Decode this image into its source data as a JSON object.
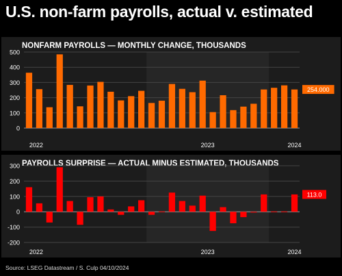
{
  "title": "U.S. non-farm payrolls, actual v. estimated",
  "source": "Source: LSEG Datastream / S. Culp 04/10/2024",
  "colors": {
    "background": "#000000",
    "panel": "#1c1c1c",
    "panel_shade": "#262626",
    "grid": "#444444",
    "top_bars": "#ff6a00",
    "bottom_bars": "#ff0000"
  },
  "chart_data": [
    {
      "type": "bar",
      "title": "NONFARM PAYROLLS — MONTHLY CHANGE, THOUSANDS",
      "xlabel": "",
      "ylabel": "",
      "ylim": [
        0,
        500
      ],
      "yticks": [
        0,
        100,
        200,
        300,
        400,
        500
      ],
      "year_labels": [
        "2022",
        "2023",
        "2024"
      ],
      "grid": true,
      "last_value_label": "254.000",
      "categories": [
        "2022-01",
        "2022-02",
        "2022-03",
        "2022-04",
        "2022-05",
        "2022-06",
        "2022-07",
        "2022-08",
        "2022-09",
        "2022-10",
        "2022-11",
        "2022-12",
        "2023-01",
        "2023-02",
        "2023-03",
        "2023-04",
        "2023-05",
        "2023-06",
        "2023-07",
        "2023-08",
        "2023-09",
        "2023-10",
        "2023-11",
        "2023-12",
        "2024-01",
        "2024-02",
        "2024-03"
      ],
      "values": [
        364,
        256,
        137,
        485,
        284,
        143,
        280,
        304,
        239,
        182,
        210,
        245,
        165,
        180,
        290,
        258,
        236,
        312,
        105,
        216,
        118,
        141,
        160,
        254,
        265,
        281,
        254
      ]
    },
    {
      "type": "bar",
      "title": "PAYROLLS SURPRISE — ACTUAL MINUS ESTIMATED, THOUSANDS",
      "xlabel": "",
      "ylabel": "",
      "ylim": [
        -200,
        300
      ],
      "yticks": [
        -200,
        -100,
        0,
        100,
        200,
        300
      ],
      "year_labels": [
        "2022",
        "2023",
        "2024"
      ],
      "grid": true,
      "last_value_label": "113.0",
      "categories": [
        "2022-01",
        "2022-02",
        "2022-03",
        "2022-04",
        "2022-05",
        "2022-06",
        "2022-07",
        "2022-08",
        "2022-09",
        "2022-10",
        "2022-11",
        "2022-12",
        "2023-01",
        "2023-02",
        "2023-03",
        "2023-04",
        "2023-05",
        "2023-06",
        "2023-07",
        "2023-08",
        "2023-09",
        "2023-10",
        "2023-11",
        "2023-12",
        "2024-01",
        "2024-02",
        "2024-03"
      ],
      "values": [
        160,
        55,
        -70,
        290,
        70,
        -85,
        95,
        100,
        15,
        -20,
        35,
        75,
        -20,
        0,
        125,
        70,
        40,
        105,
        -125,
        30,
        -75,
        -35,
        -5,
        113,
        0,
        0,
        113
      ]
    }
  ]
}
